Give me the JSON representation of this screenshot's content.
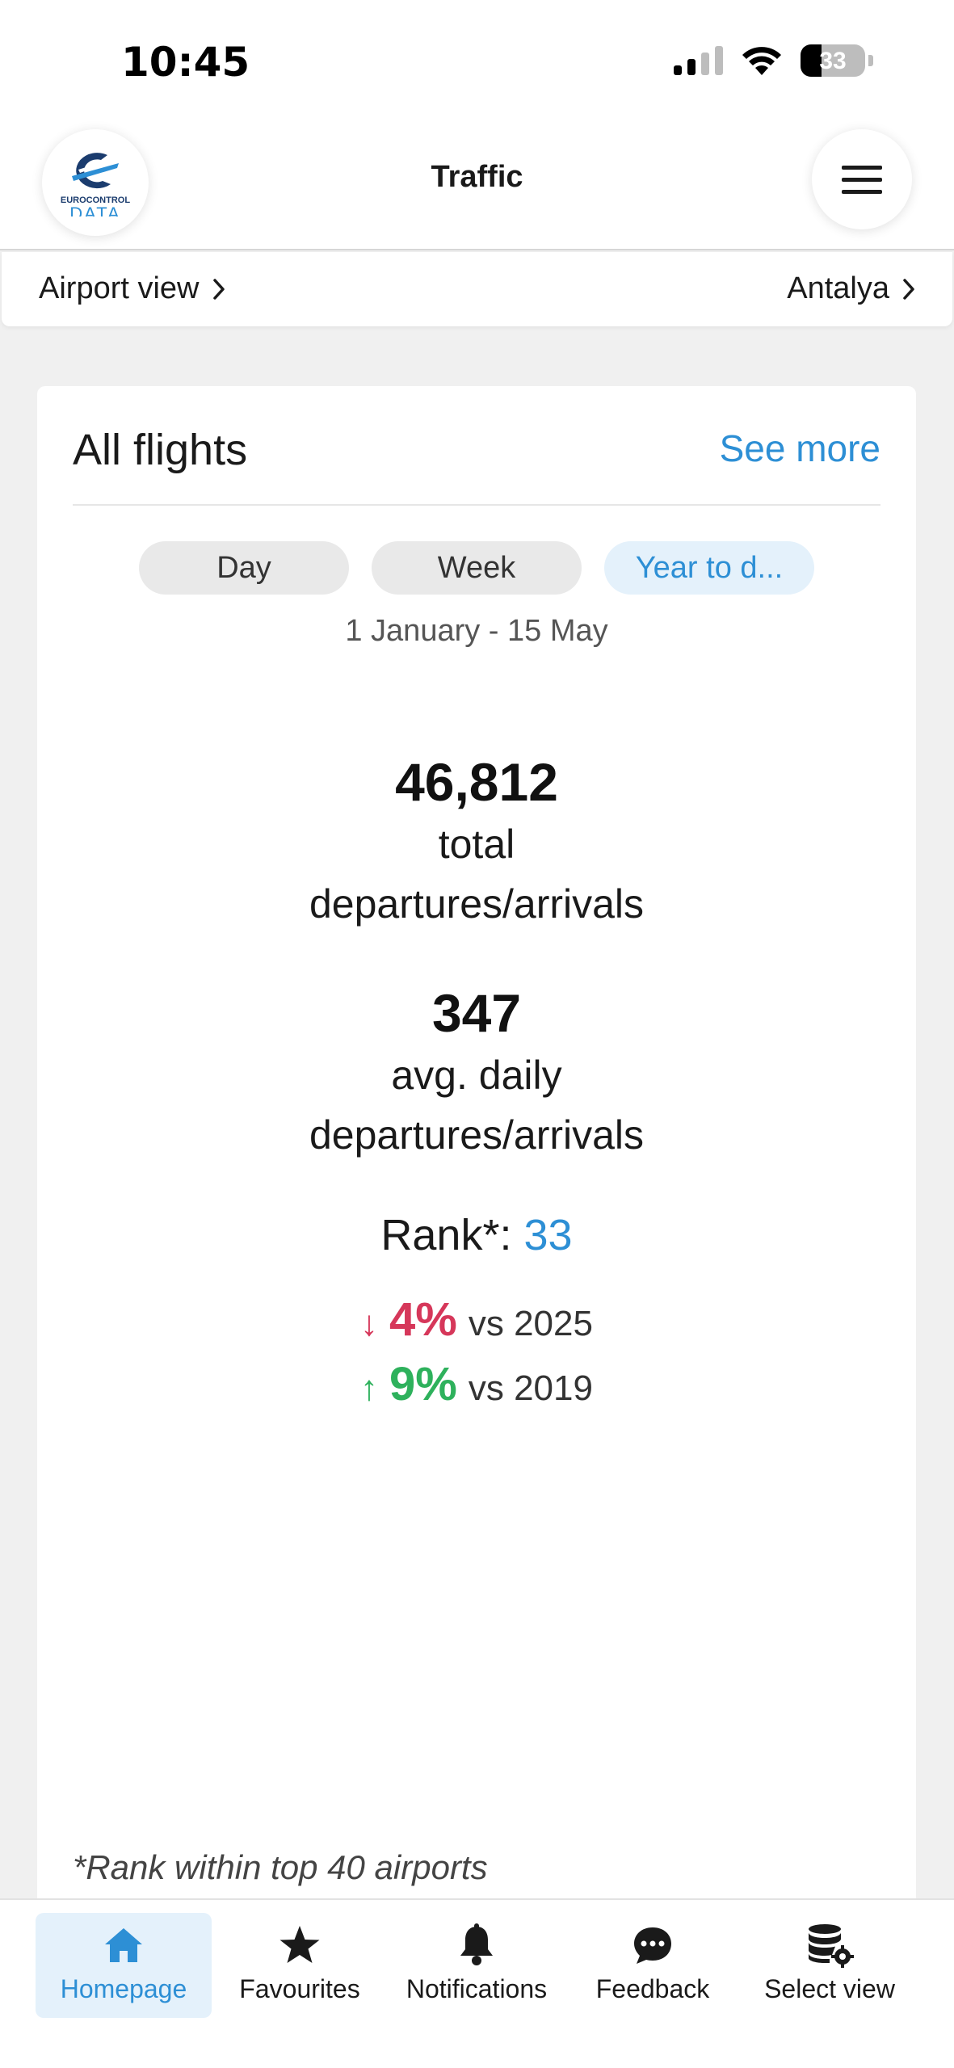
{
  "status_bar": {
    "time": "10:45",
    "battery": "33",
    "battery_level": 0.33
  },
  "header": {
    "title": "Traffic",
    "logo_text": "EUROCONTROL",
    "logo_subtext": "DATA"
  },
  "view_bar": {
    "left_label": "Airport view",
    "right_label": "Antalya"
  },
  "card": {
    "title": "All flights",
    "see_more": "See more",
    "tabs": [
      {
        "label": "Day",
        "active": false
      },
      {
        "label": "Week",
        "active": false
      },
      {
        "label": "Year to d...",
        "active": true
      }
    ],
    "date_range": "1 January - 15 May",
    "total": {
      "value": "46,812",
      "label_line1": "total",
      "label_line2": "departures/arrivals"
    },
    "average": {
      "value": "347",
      "label_line1": "avg. daily",
      "label_line2": "departures/arrivals"
    },
    "rank": {
      "label": "Rank*:",
      "value": "33"
    },
    "changes": [
      {
        "arrow": "↓",
        "pct": "4%",
        "text": "vs 2025",
        "direction": "down"
      },
      {
        "arrow": "↑",
        "pct": "9%",
        "text": "vs 2019",
        "direction": "up"
      }
    ],
    "footnote": "*Rank within top 40 airports"
  },
  "bottom_nav": [
    {
      "label": "Homepage",
      "icon": "home-icon",
      "active": true
    },
    {
      "label": "Favourites",
      "icon": "star-icon",
      "active": false
    },
    {
      "label": "Notifications",
      "icon": "bell-icon",
      "active": false
    },
    {
      "label": "Feedback",
      "icon": "chat-bubble-icon",
      "active": false
    },
    {
      "label": "Select view",
      "icon": "database-gear-icon",
      "active": false
    }
  ],
  "colors": {
    "accent": "#2d8fd5",
    "down": "#d6375a",
    "up": "#2eb15c"
  }
}
